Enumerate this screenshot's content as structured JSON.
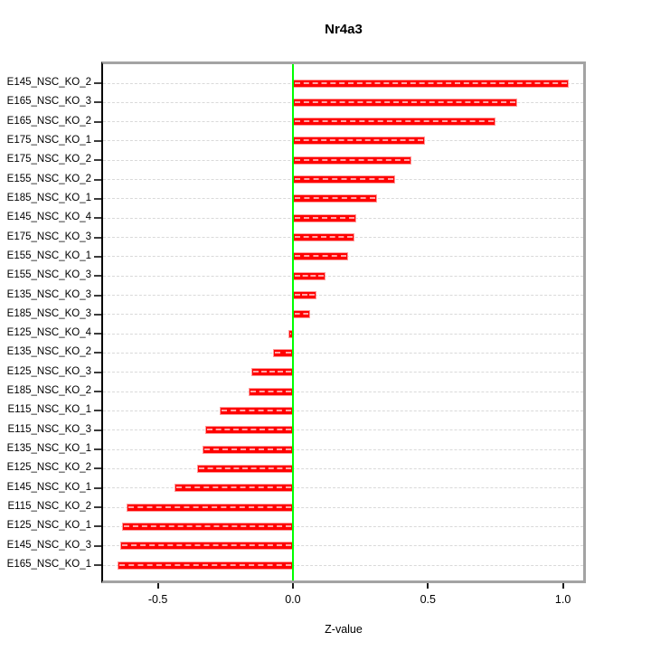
{
  "title": "Nr4a3",
  "x_axis_title": "Z-value",
  "chart_data": {
    "type": "bar",
    "orientation": "horizontal",
    "title": "Nr4a3",
    "xlabel": "Z-value",
    "categories": [
      "E145_NSC_KO_2",
      "E165_NSC_KO_3",
      "E165_NSC_KO_2",
      "E175_NSC_KO_1",
      "E175_NSC_KO_2",
      "E155_NSC_KO_2",
      "E185_NSC_KO_1",
      "E145_NSC_KO_4",
      "E175_NSC_KO_3",
      "E155_NSC_KO_1",
      "E155_NSC_KO_3",
      "E135_NSC_KO_3",
      "E185_NSC_KO_3",
      "E125_NSC_KO_4",
      "E135_NSC_KO_2",
      "E125_NSC_KO_3",
      "E185_NSC_KO_2",
      "E115_NSC_KO_1",
      "E115_NSC_KO_3",
      "E135_NSC_KO_1",
      "E125_NSC_KO_2",
      "E145_NSC_KO_1",
      "E115_NSC_KO_2",
      "E125_NSC_KO_1",
      "E145_NSC_KO_3",
      "E165_NSC_KO_1"
    ],
    "values": [
      1.02,
      0.83,
      0.75,
      0.49,
      0.44,
      0.38,
      0.31,
      0.235,
      0.228,
      0.205,
      0.12,
      0.087,
      0.065,
      -0.017,
      -0.075,
      -0.155,
      -0.165,
      -0.27,
      -0.325,
      -0.335,
      -0.355,
      -0.44,
      -0.615,
      -0.632,
      -0.64,
      -0.648
    ],
    "xlim": [
      -0.703,
      1.075
    ],
    "xticks": [
      -0.5,
      0.0,
      0.5,
      1.0
    ],
    "xtick_labels": [
      "-0.5",
      "0.0",
      "0.5",
      "1.0"
    ],
    "grid": true,
    "legend_position": "none",
    "colors": {
      "bar_fill": "#ff0000",
      "bar_edge": "#ff9999",
      "zero_line": "#00ff00",
      "grid_line": "#d9d9d9",
      "box_border": "#a3a3a3",
      "axis_line": "#000000"
    }
  }
}
